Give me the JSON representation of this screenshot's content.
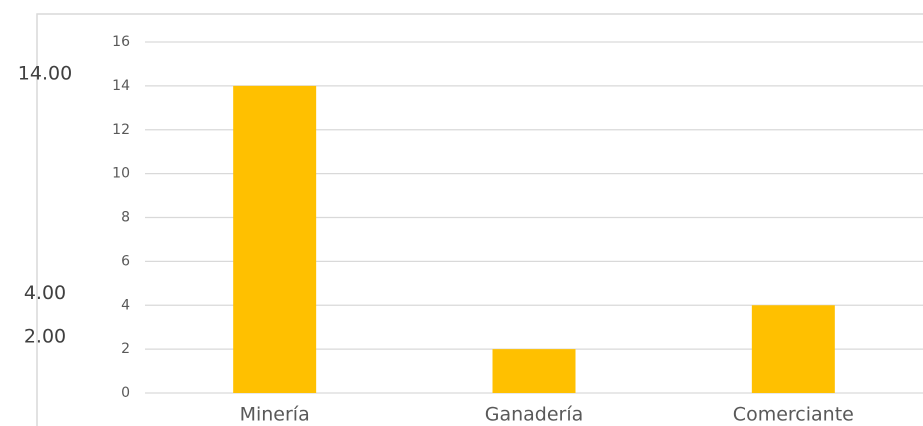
{
  "chart_data": {
    "type": "bar",
    "categories": [
      "Minería",
      "Ganadería",
      "Comerciante"
    ],
    "values": [
      14,
      2,
      4
    ],
    "value_labels": [
      "14.00",
      "2.00",
      "4.00"
    ],
    "color": "#ffc000",
    "ylim": [
      0,
      16
    ],
    "yticks": [
      0,
      2,
      4,
      6,
      8,
      10,
      12,
      14,
      16
    ],
    "grid": true
  }
}
